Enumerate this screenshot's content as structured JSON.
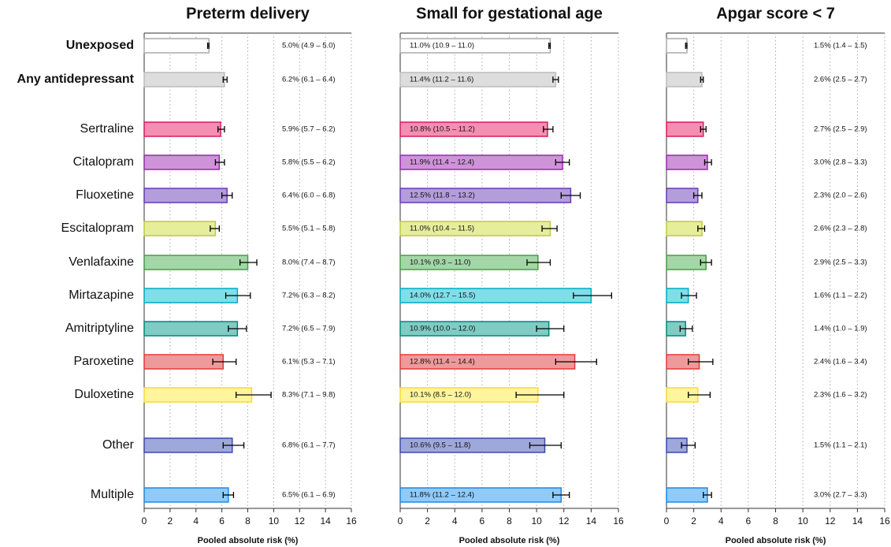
{
  "chart_data": [
    {
      "type": "bar",
      "orientation": "horizontal",
      "title": "Preterm delivery",
      "xlabel": "Pooled absolute risk (%)",
      "categories": [
        "Unexposed",
        "Any antidepressant",
        "Sertraline",
        "Citalopram",
        "Fluoxetine",
        "Escitalopram",
        "Venlafaxine",
        "Mirtazapine",
        "Amitriptyline",
        "Paroxetine",
        "Duloxetine",
        "Other",
        "Multiple"
      ],
      "colors": [
        "#ffffff",
        "#dddddd",
        "#f48fb1",
        "#ce93d8",
        "#b39ddb",
        "#e6ee9c",
        "#a5d6a7",
        "#80deea",
        "#80cbc4",
        "#ef9a9a",
        "#fff59d",
        "#9fa8da",
        "#90caf9"
      ],
      "edge_colors": [
        "#aaaaaa",
        "#bbbbbb",
        "#d81b60",
        "#9c27b0",
        "#673ab7",
        "#c0ca33",
        "#43a047",
        "#00acc1",
        "#00897b",
        "#e53935",
        "#fdd835",
        "#3949ab",
        "#1e88e5"
      ],
      "values": [
        5.0,
        6.2,
        5.9,
        5.8,
        6.4,
        5.5,
        8.0,
        7.2,
        7.2,
        6.1,
        8.3,
        6.8,
        6.5
      ],
      "ci_low": [
        4.9,
        6.1,
        5.7,
        5.5,
        6.0,
        5.1,
        7.4,
        6.3,
        6.5,
        5.3,
        7.1,
        6.1,
        6.1
      ],
      "ci_high": [
        5.0,
        6.4,
        6.2,
        6.2,
        6.8,
        5.8,
        8.7,
        8.2,
        7.9,
        7.1,
        9.8,
        7.7,
        6.9
      ],
      "value_labels": [
        "5.0% (4.9 – 5.0)",
        "6.2% (6.1 – 6.4)",
        "5.9% (5.7 – 6.2)",
        "5.8% (5.5 – 6.2)",
        "6.4% (6.0 – 6.8)",
        "5.5% (5.1 – 5.8)",
        "8.0% (7.4 – 8.7)",
        "7.2% (6.3 – 8.2)",
        "7.2% (6.5 – 7.9)",
        "6.1% (5.3 – 7.1)",
        "8.3% (7.1 – 9.8)",
        "6.8% (6.1 – 7.7)",
        "6.5% (6.1 – 6.9)"
      ],
      "xlim": [
        0,
        16
      ],
      "xticks": [
        0,
        2,
        4,
        6,
        8,
        10,
        12,
        14,
        16
      ],
      "grid": true
    },
    {
      "type": "bar",
      "orientation": "horizontal",
      "title": "Small for gestational age",
      "xlabel": "Pooled absolute risk (%)",
      "values": [
        11.0,
        11.4,
        10.8,
        11.9,
        12.5,
        11.0,
        10.1,
        14.0,
        10.9,
        12.8,
        10.1,
        10.6,
        11.8
      ],
      "ci_low": [
        10.9,
        11.2,
        10.5,
        11.4,
        11.8,
        10.4,
        9.3,
        12.7,
        10.0,
        11.4,
        8.5,
        9.5,
        11.2
      ],
      "ci_high": [
        11.0,
        11.6,
        11.2,
        12.4,
        13.2,
        11.5,
        11.0,
        15.5,
        12.0,
        14.4,
        12.0,
        11.8,
        12.4
      ],
      "value_labels": [
        "11.0% (10.9 – 11.0)",
        "11.4% (11.2 – 11.6)",
        "10.8% (10.5 – 11.2)",
        "11.9% (11.4 – 12.4)",
        "12.5% (11.8 – 13.2)",
        "11.0% (10.4 – 11.5)",
        "10.1% (9.3 – 11.0)",
        "14.0% (12.7 – 15.5)",
        "10.9% (10.0 – 12.0)",
        "12.8% (11.4 – 14.4)",
        "10.1% (8.5 – 12.0)",
        "10.6% (9.5 – 11.8)",
        "11.8% (11.2 – 12.4)"
      ],
      "xlim": [
        0,
        16
      ],
      "xticks": [
        0,
        2,
        4,
        6,
        8,
        10,
        12,
        14,
        16
      ],
      "grid": true
    },
    {
      "type": "bar",
      "orientation": "horizontal",
      "title": "Apgar score < 7",
      "xlabel": "Pooled absolute risk (%)",
      "values": [
        1.5,
        2.6,
        2.7,
        3.0,
        2.3,
        2.6,
        2.9,
        1.6,
        1.4,
        2.4,
        2.3,
        1.5,
        3.0
      ],
      "ci_low": [
        1.4,
        2.5,
        2.5,
        2.8,
        2.0,
        2.3,
        2.5,
        1.1,
        1.0,
        1.6,
        1.6,
        1.1,
        2.7
      ],
      "ci_high": [
        1.5,
        2.7,
        2.9,
        3.3,
        2.6,
        2.8,
        3.3,
        2.2,
        1.9,
        3.4,
        3.2,
        2.1,
        3.3
      ],
      "value_labels": [
        "1.5% (1.4 – 1.5)",
        "2.6% (2.5 – 2.7)",
        "2.7% (2.5 – 2.9)",
        "3.0% (2.8 – 3.3)",
        "2.3% (2.0 – 2.6)",
        "2.6% (2.3 – 2.8)",
        "2.9% (2.5 – 3.3)",
        "1.6% (1.1 – 2.2)",
        "1.4% (1.0 – 1.9)",
        "2.4% (1.6 – 3.4)",
        "2.3% (1.6 – 3.2)",
        "1.5% (1.1 – 2.1)",
        "3.0% (2.7 – 3.3)"
      ],
      "xlim": [
        0,
        16
      ],
      "xticks": [
        0,
        2,
        4,
        6,
        8,
        10,
        12,
        14,
        16
      ],
      "grid": true
    }
  ]
}
